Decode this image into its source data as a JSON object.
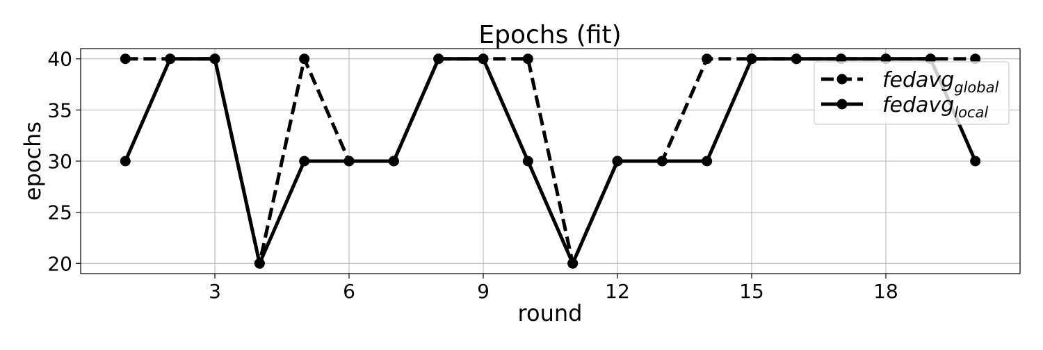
{
  "chart_data": {
    "type": "line",
    "title": "Epochs (fit)",
    "xlabel": "round",
    "ylabel": "epochs",
    "xlim": [
      0,
      21
    ],
    "ylim": [
      19,
      41
    ],
    "xticks": [
      3,
      6,
      9,
      12,
      15,
      18
    ],
    "yticks": [
      20,
      25,
      30,
      35,
      40
    ],
    "grid": true,
    "legend_position": "upper right",
    "x": [
      1,
      2,
      3,
      4,
      5,
      6,
      7,
      8,
      9,
      10,
      11,
      12,
      13,
      14,
      15,
      16,
      17,
      18,
      19,
      20
    ],
    "series": [
      {
        "legend_base": "fedavg",
        "legend_sub": "global",
        "style": "dashed",
        "marker": "circle",
        "color": "#000000",
        "values": [
          40,
          40,
          40,
          20,
          40,
          30,
          30,
          40,
          40,
          40,
          20,
          30,
          30,
          40,
          40,
          40,
          40,
          40,
          40,
          40
        ]
      },
      {
        "legend_base": "fedavg",
        "legend_sub": "local",
        "style": "solid",
        "marker": "circle",
        "color": "#000000",
        "values": [
          30,
          40,
          40,
          20,
          30,
          30,
          30,
          40,
          40,
          30,
          20,
          30,
          30,
          30,
          40,
          40,
          40,
          40,
          40,
          30
        ]
      }
    ]
  }
}
